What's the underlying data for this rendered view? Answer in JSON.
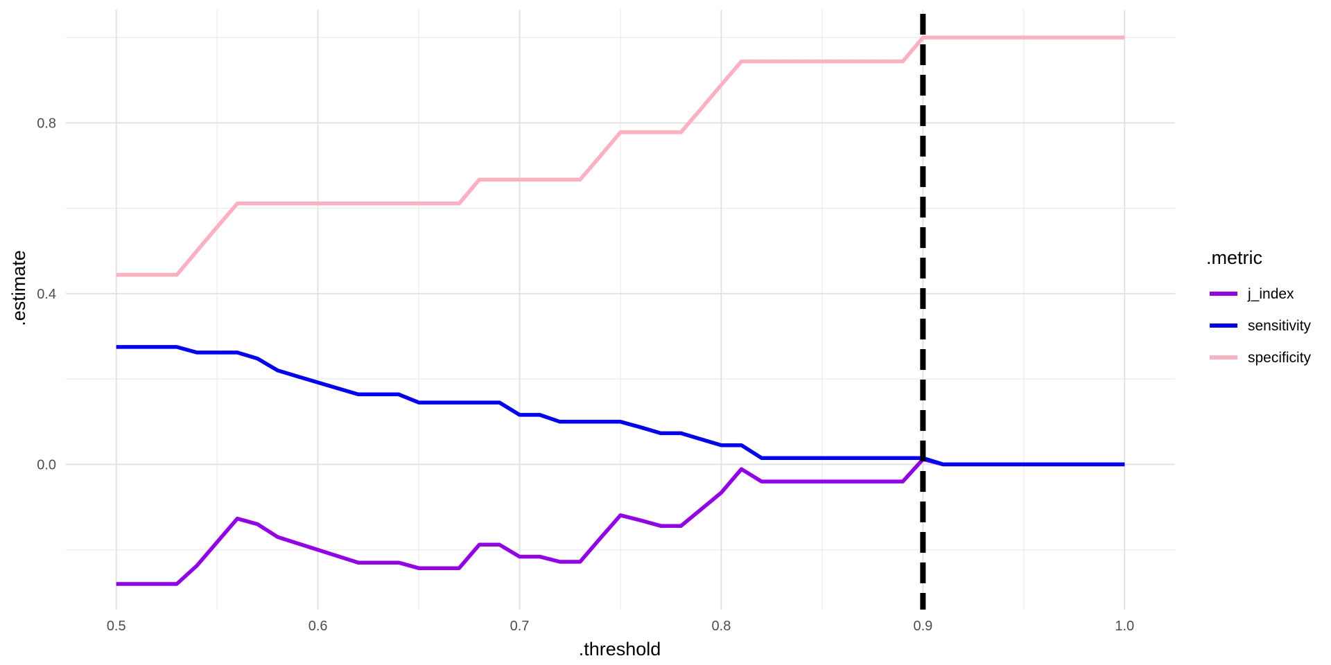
{
  "chart_data": {
    "type": "line",
    "title": "",
    "xlabel": ".threshold",
    "ylabel": ".estimate",
    "xlim": [
      0.475,
      1.025
    ],
    "ylim": [
      -0.34,
      1.065
    ],
    "x_ticks": [
      0.5,
      0.6,
      0.7,
      0.8,
      0.9,
      1.0
    ],
    "x_tick_labels": [
      "0.5",
      "0.6",
      "0.7",
      "0.8",
      "0.9",
      "1.0"
    ],
    "y_ticks": [
      0.0,
      0.4,
      0.8
    ],
    "y_tick_labels": [
      "0.0",
      "0.4",
      "0.8"
    ],
    "grid": true,
    "legend": {
      "title": ".metric",
      "position": "right"
    },
    "vline": {
      "x": 0.9,
      "style": "dashed",
      "color": "#000000"
    },
    "x": [
      0.5,
      0.51,
      0.52,
      0.53,
      0.54,
      0.55,
      0.56,
      0.57,
      0.58,
      0.59,
      0.6,
      0.61,
      0.62,
      0.63,
      0.64,
      0.65,
      0.66,
      0.67,
      0.68,
      0.69,
      0.7,
      0.71,
      0.72,
      0.73,
      0.74,
      0.75,
      0.76,
      0.77,
      0.78,
      0.79,
      0.8,
      0.81,
      0.82,
      0.83,
      0.84,
      0.85,
      0.86,
      0.87,
      0.88,
      0.89,
      0.9,
      0.91,
      0.92,
      0.93,
      0.94,
      0.95,
      0.96,
      0.97,
      0.98,
      0.99,
      1.0
    ],
    "series": [
      {
        "name": "j_index",
        "color": "#9400EE",
        "values": [
          -0.28,
          -0.28,
          -0.28,
          -0.28,
          -0.237,
          -0.182,
          -0.127,
          -0.14,
          -0.17,
          -0.185,
          -0.2,
          -0.215,
          -0.23,
          -0.23,
          -0.23,
          -0.243,
          -0.243,
          -0.243,
          -0.188,
          -0.188,
          -0.216,
          -0.216,
          -0.228,
          -0.228,
          -0.173,
          -0.119,
          -0.131,
          -0.144,
          -0.144,
          -0.105,
          -0.066,
          -0.011,
          -0.04,
          -0.04,
          -0.04,
          -0.04,
          -0.04,
          -0.04,
          -0.04,
          -0.04,
          0.012,
          0.0,
          0.0,
          0.0,
          0.0,
          0.0,
          0.0,
          0.0,
          0.0,
          0.0,
          0.0
        ]
      },
      {
        "name": "sensitivity",
        "color": "#0000FF",
        "values": [
          0.275,
          0.275,
          0.275,
          0.275,
          0.262,
          0.262,
          0.262,
          0.248,
          0.22,
          0.206,
          0.192,
          0.178,
          0.164,
          0.164,
          0.164,
          0.145,
          0.145,
          0.145,
          0.145,
          0.145,
          0.116,
          0.116,
          0.1,
          0.1,
          0.1,
          0.1,
          0.087,
          0.073,
          0.073,
          0.059,
          0.045,
          0.045,
          0.015,
          0.015,
          0.015,
          0.015,
          0.015,
          0.015,
          0.015,
          0.015,
          0.015,
          0.0,
          0.0,
          0.0,
          0.0,
          0.0,
          0.0,
          0.0,
          0.0,
          0.0,
          0.0
        ]
      },
      {
        "name": "specificity",
        "color": "#FFB0C0",
        "values": [
          0.444,
          0.444,
          0.444,
          0.444,
          0.5,
          0.556,
          0.611,
          0.611,
          0.611,
          0.611,
          0.611,
          0.611,
          0.611,
          0.611,
          0.611,
          0.611,
          0.611,
          0.611,
          0.667,
          0.667,
          0.667,
          0.667,
          0.667,
          0.667,
          0.722,
          0.778,
          0.778,
          0.778,
          0.778,
          0.833,
          0.889,
          0.944,
          0.944,
          0.944,
          0.944,
          0.944,
          0.944,
          0.944,
          0.944,
          0.944,
          1.0,
          1.0,
          1.0,
          1.0,
          1.0,
          1.0,
          1.0,
          1.0,
          1.0,
          1.0,
          1.0
        ]
      }
    ]
  }
}
